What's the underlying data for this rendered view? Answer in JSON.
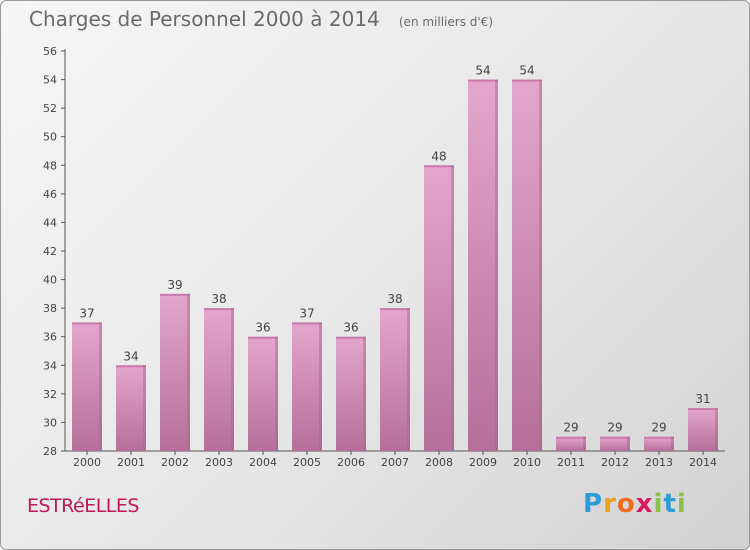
{
  "header": {
    "title": "Charges de Personnel 2000 à 2014",
    "subtitle": "(en milliers d'€)"
  },
  "footer": {
    "commune": "ESTRéELLES",
    "logo_letters": [
      "P",
      "r",
      "o",
      "x",
      "i",
      "t",
      "i"
    ],
    "logo_colors": [
      "#2e9bd6",
      "#e8a11c",
      "#ef6c1c",
      "#d81b60",
      "#8bc34a",
      "#2e9bd6",
      "#8bc34a"
    ]
  },
  "chart_data": {
    "type": "bar",
    "categories": [
      "2000",
      "2001",
      "2002",
      "2003",
      "2004",
      "2005",
      "2006",
      "2007",
      "2008",
      "2009",
      "2010",
      "2011",
      "2012",
      "2013",
      "2014"
    ],
    "values": [
      37,
      34,
      39,
      38,
      36,
      37,
      36,
      38,
      48,
      54,
      54,
      29,
      29,
      29,
      31
    ],
    "ylim": [
      28,
      56
    ],
    "yticks": [
      28,
      30,
      32,
      34,
      36,
      38,
      40,
      42,
      44,
      46,
      48,
      50,
      52,
      54,
      56
    ],
    "grid": false,
    "bar_color": "#d486b4",
    "title": "Charges de Personnel 2000 à 2014",
    "xlabel": "",
    "ylabel": ""
  }
}
